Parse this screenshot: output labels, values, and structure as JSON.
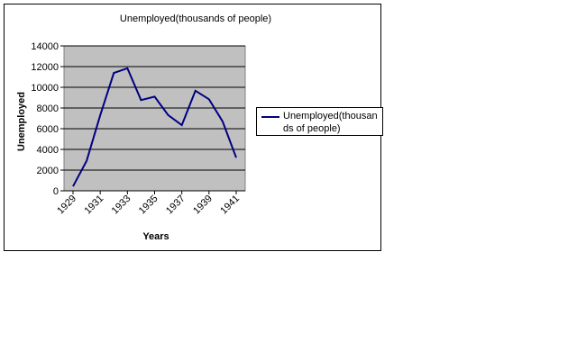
{
  "chart_data": {
    "type": "line",
    "title": "Unemployed(thousands of people)",
    "xlabel": "Years",
    "ylabel": "Unemployed",
    "x": [
      1929,
      1930,
      1931,
      1932,
      1933,
      1934,
      1935,
      1936,
      1937,
      1938,
      1939,
      1940,
      1941
    ],
    "x_tick_labels": [
      "1929",
      "1931",
      "1933",
      "1935",
      "1937",
      "1939",
      "1941"
    ],
    "y_tick_labels": [
      "0",
      "2000",
      "4000",
      "6000",
      "8000",
      "10000",
      "12000",
      "14000"
    ],
    "ylim": [
      0,
      14000
    ],
    "grid": true,
    "plot_background": "#c0c0c0",
    "legend_position": "right",
    "series": [
      {
        "name": "Unemployed(thousands of people)",
        "color": "#000080",
        "values": [
          429,
          2896,
          7300,
          11385,
          11842,
          8768,
          9094,
          7307,
          6342,
          9668,
          8844,
          6700,
          3200
        ]
      }
    ]
  }
}
